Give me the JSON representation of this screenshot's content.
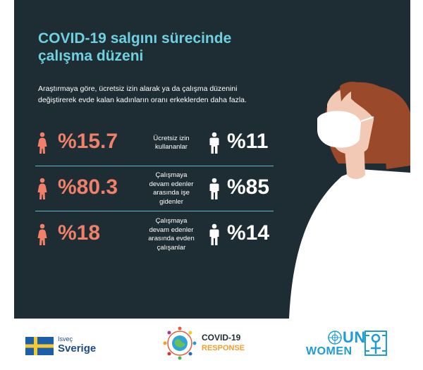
{
  "title": {
    "line1": "COVID-19 salgını sürecinde",
    "line2": "çalışma düzeni"
  },
  "intro": {
    "line1": "Araştırmaya göre, ücretsiz izin alarak ya da çalışma düzenini",
    "line2": "değiştirerek evde kalan kadınların oranı erkeklerden daha fazla."
  },
  "rows": [
    {
      "female_value": "%15.7",
      "label_lines": [
        "Ücretsiz izin",
        "kullananlar"
      ],
      "male_value": "%11"
    },
    {
      "female_value": "%80.3",
      "label_lines": [
        "Çalışmaya",
        "devam edenler",
        "arasında işe",
        "gidenler"
      ],
      "male_value": "%85"
    },
    {
      "female_value": "%18",
      "label_lines": [
        "Çalışmaya",
        "devam edenler",
        "arasında evden",
        "çalışanlar"
      ],
      "male_value": "%14"
    }
  ],
  "footer": {
    "sweden_small": "Isveç",
    "sweden_big": "Sverige",
    "covid_line1": "COVID-19",
    "covid_line2": "RESPONSE",
    "unwomen_line1": "UN",
    "unwomen_line2": "WOMEN"
  },
  "icons": {
    "female": "female-person-icon",
    "male": "male-person-icon"
  },
  "colors": {
    "background": "#1e2d33",
    "title": "#6fd0e0",
    "female_accent": "#f0806a",
    "male_accent": "#ffffff",
    "separator": "#5fb8c8",
    "un_blue": "#1f9bd7"
  }
}
